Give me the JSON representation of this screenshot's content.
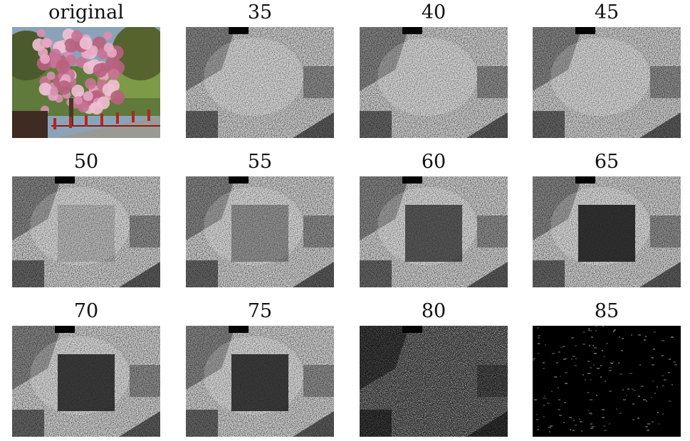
{
  "figure": {
    "panels": [
      {
        "label": "original",
        "kind": "photo"
      },
      {
        "label": "35",
        "kind": "noise",
        "square": 0.0
      },
      {
        "label": "40",
        "kind": "noise",
        "square": 0.0
      },
      {
        "label": "45",
        "kind": "noise",
        "square": 0.0
      },
      {
        "label": "50",
        "kind": "noise",
        "square": 0.15
      },
      {
        "label": "55",
        "kind": "noise",
        "square": 0.35
      },
      {
        "label": "60",
        "kind": "noise",
        "square": 0.65
      },
      {
        "label": "65",
        "kind": "noise",
        "square": 0.85
      },
      {
        "label": "70",
        "kind": "noise",
        "square": 0.8
      },
      {
        "label": "75",
        "kind": "noise",
        "square": 0.8
      },
      {
        "label": "80",
        "kind": "noise-dim",
        "square": 0.0
      },
      {
        "label": "85",
        "kind": "black",
        "square": 0.0
      }
    ]
  }
}
